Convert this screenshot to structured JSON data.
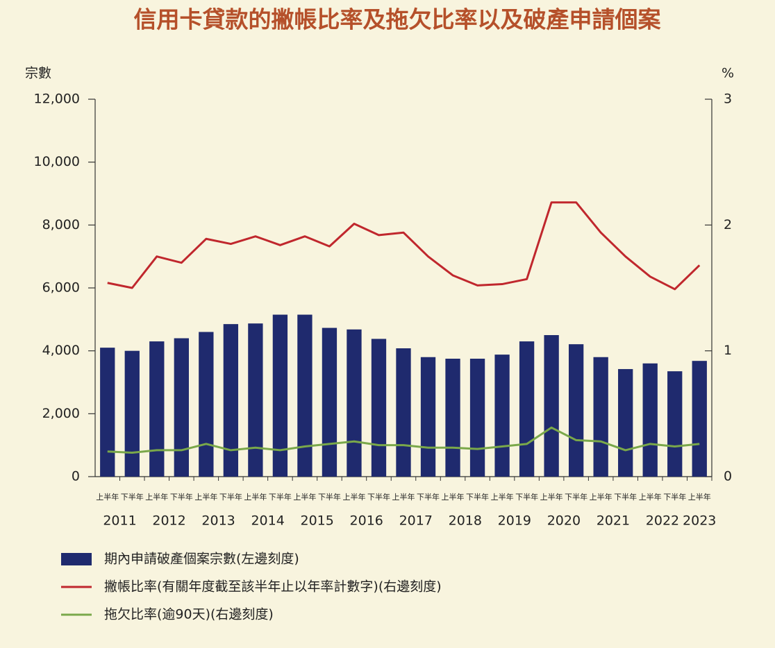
{
  "chart_data": {
    "type": "bar",
    "title": "信用卡貸款的撇帳比率及拖欠比率以及破產申請個案",
    "ylabel": "宗數",
    "y2label": "%",
    "categories": [
      "上半年",
      "下半年",
      "上半年",
      "下半年",
      "上半年",
      "下半年",
      "上半年",
      "下半年",
      "上半年",
      "下半年",
      "上半年",
      "下半年",
      "上半年",
      "下半年",
      "上半年",
      "下半年",
      "上半年",
      "下半年",
      "上半年",
      "下半年",
      "上半年",
      "下半年",
      "上半年",
      "下半年",
      "上半年"
    ],
    "years": [
      "2011",
      "2012",
      "2013",
      "2014",
      "2015",
      "2016",
      "2017",
      "2018",
      "2019",
      "2020",
      "2021",
      "2022",
      "2023"
    ],
    "ylim": [
      0,
      12000
    ],
    "yticks": [
      0,
      {
        "value": 2000,
        "label": "2,000"
      },
      {
        "value": 4000,
        "label": "4,000"
      },
      {
        "value": 6000,
        "label": "6,000"
      },
      {
        "value": 8000,
        "label": "8,000"
      },
      {
        "value": 10000,
        "label": "10,000"
      },
      {
        "value": 12000,
        "label": "12,000"
      }
    ],
    "y2lim": [
      0,
      3
    ],
    "y2ticks": [
      0,
      1,
      2,
      3
    ],
    "series": [
      {
        "name": "期內申請破產個案宗數(左邊刻度)",
        "type": "bar",
        "color": "#1f2a6e",
        "values": [
          4100,
          4000,
          4300,
          4400,
          4600,
          4850,
          4870,
          5150,
          5150,
          4730,
          4680,
          4380,
          4080,
          3800,
          3750,
          3750,
          3880,
          4300,
          4500,
          4210,
          3800,
          3420,
          3600,
          3350,
          3680
        ]
      },
      {
        "name": "撇帳比率(有關年度截至該半年止以年率計數字)(右邊刻度)",
        "type": "line",
        "axis": "y2",
        "color": "#c0272d",
        "values": [
          1.54,
          1.5,
          1.75,
          1.7,
          1.89,
          1.85,
          1.91,
          1.84,
          1.91,
          1.83,
          2.01,
          1.92,
          1.94,
          1.75,
          1.6,
          1.52,
          1.53,
          1.57,
          2.18,
          2.18,
          1.94,
          1.75,
          1.59,
          1.49,
          1.68
        ]
      },
      {
        "name": "拖欠比率(逾90天)(右邊刻度)",
        "type": "line",
        "axis": "y2",
        "color": "#7aa84a",
        "values": [
          0.2,
          0.19,
          0.21,
          0.21,
          0.26,
          0.21,
          0.23,
          0.21,
          0.24,
          0.26,
          0.28,
          0.25,
          0.25,
          0.23,
          0.23,
          0.22,
          0.24,
          0.26,
          0.39,
          0.29,
          0.28,
          0.21,
          0.26,
          0.24,
          0.26
        ]
      }
    ]
  }
}
